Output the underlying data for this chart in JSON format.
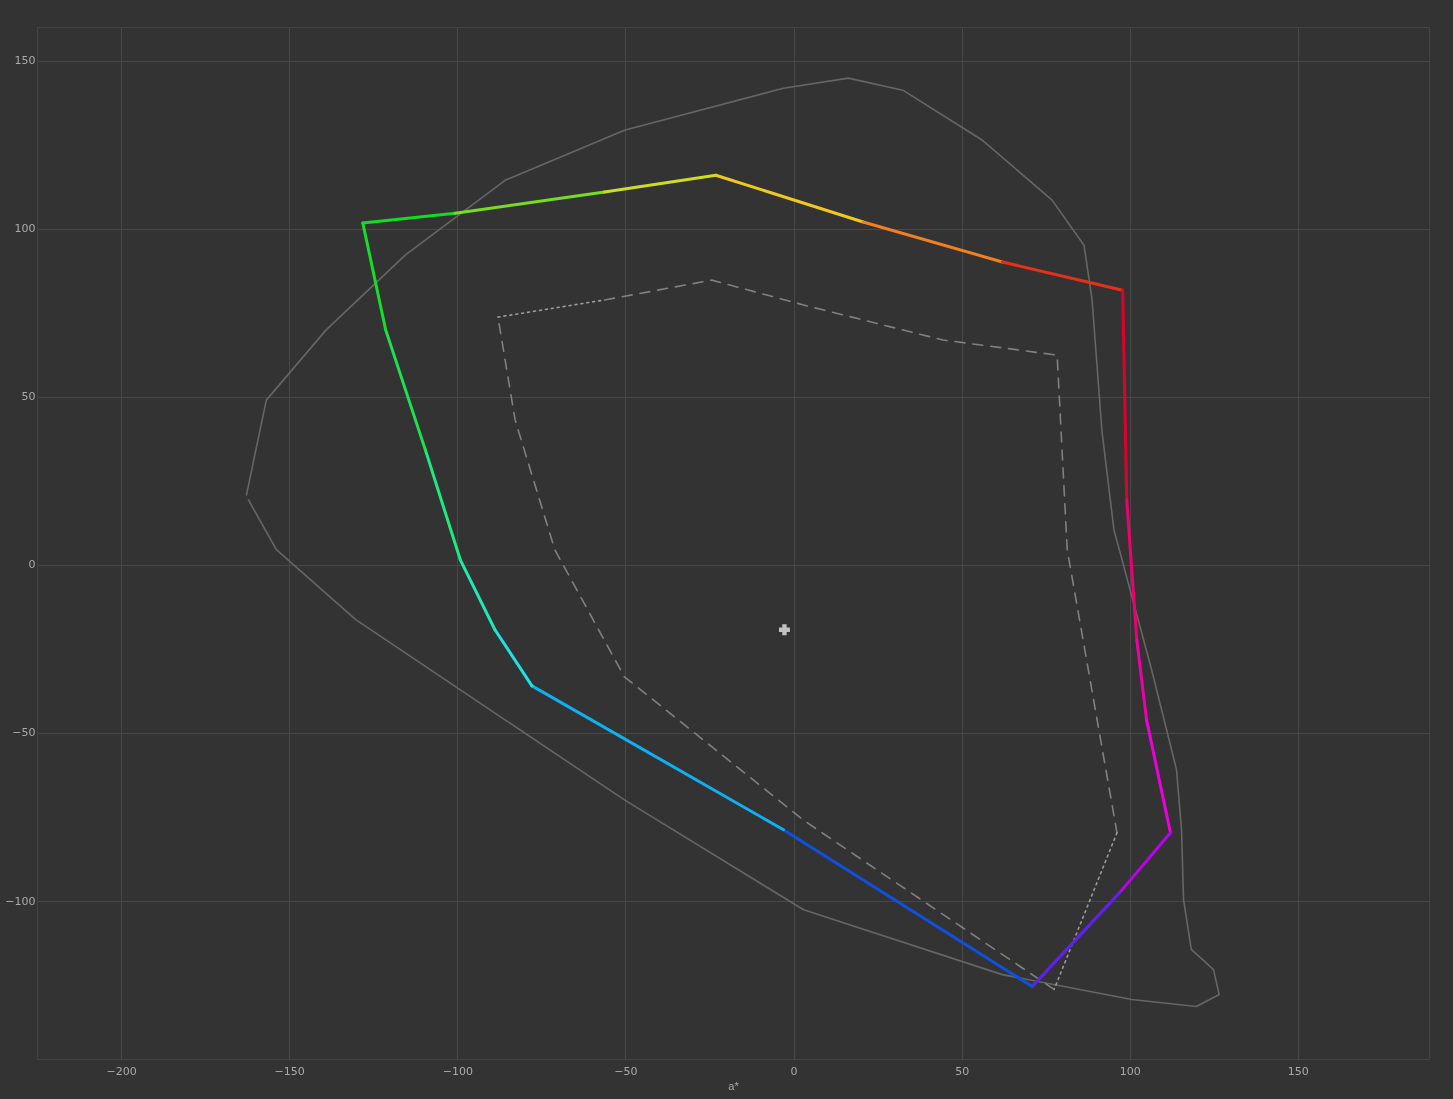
{
  "chart_data": {
    "type": "line",
    "xlabel": "a*",
    "xlim": [
      -225,
      189
    ],
    "ylim": [
      -147,
      160
    ],
    "xticks": [
      -200,
      -150,
      -100,
      -50,
      0,
      50,
      100,
      150
    ],
    "yticks": [
      -100,
      -50,
      0,
      50,
      100,
      150
    ],
    "grid": true,
    "series": [
      {
        "color": "#666666",
        "line_style": "solid",
        "x": [
          -162.7,
          -156.8,
          -139,
          -115.4,
          -85.8,
          -50.3,
          -3,
          16.3,
          32.5,
          56.2,
          76.9,
          86.4,
          88.8,
          91.7,
          95.3,
          106.5,
          113.9,
          115.4,
          116,
          118.3,
          124.9,
          126.6,
          119.8,
          100.6,
          62.1,
          3,
          -50.3,
          -85.8,
          -130.2,
          -153.8,
          -162.1
        ],
        "values": [
          20.8,
          49,
          69.9,
          92.2,
          114.4,
          129.3,
          141.8,
          144.8,
          141.2,
          126.3,
          108.5,
          95.1,
          78.8,
          40.1,
          10.4,
          -31.2,
          -60.9,
          -78.8,
          -99.6,
          -114.4,
          -120.4,
          -127.8,
          -131.4,
          -129.3,
          -121.9,
          -102.6,
          -69.9,
          -46.1,
          -16.3,
          4.5,
          19.3
        ]
      },
      {
        "color": "#9a9a9a",
        "line_style": "dotted",
        "x": [
          -87.9,
          -56.2
        ],
        "values": [
          73.7,
          78.8
        ]
      },
      {
        "color": "#808080",
        "line_style": "dashed",
        "x": [
          -56.2,
          -24.3,
          3,
          44.4,
          78.4,
          81.4,
          96.2
        ],
        "values": [
          78.8,
          84.7,
          77.3,
          66.9,
          62.4,
          4.5,
          -79.7
        ]
      },
      {
        "color": "#9a9a9a",
        "line_style": "dotted",
        "x": [
          96.2,
          77.5
        ],
        "values": [
          -79.7,
          -126.3
        ]
      },
      {
        "color": "#808080",
        "line_style": "dashed",
        "x": [
          77.5,
          3,
          -50.3,
          -71,
          -82.8,
          -87.9
        ],
        "values": [
          -126.3,
          -76,
          -33.3,
          4.5,
          43.1,
          73.7
        ]
      },
      {
        "color": "#11dd22",
        "x": [
          -128.1,
          -100.6
        ],
        "values": [
          101.7,
          104.6
        ]
      },
      {
        "color": "#77dd22",
        "x": [
          -100.6,
          -56.2
        ],
        "values": [
          104.6,
          110.9
        ]
      },
      {
        "color": "#ccdd22",
        "x": [
          -56.2,
          -23.1
        ],
        "values": [
          110.9,
          115.9
        ]
      },
      {
        "color": "#f0c820",
        "x": [
          -23.1,
          20.7
        ],
        "values": [
          115.9,
          102
        ]
      },
      {
        "color": "#f08020",
        "x": [
          20.7,
          62.1
        ],
        "values": [
          102,
          90.1
        ]
      },
      {
        "color": "#e83018",
        "x": [
          62.1,
          97.9
        ],
        "values": [
          90.1,
          81.7
        ]
      },
      {
        "color": "#e00030",
        "x": [
          97.9,
          99.1
        ],
        "values": [
          81.7,
          19.3
        ]
      },
      {
        "color": "#ee0070",
        "x": [
          99.1,
          102.1
        ],
        "values": [
          19.3,
          -22.3
        ]
      },
      {
        "color": "#f000a8",
        "x": [
          102.1,
          105
        ],
        "values": [
          -22.3,
          -46.1
        ]
      },
      {
        "color": "#ee00dd",
        "x": [
          105,
          112.1
        ],
        "values": [
          -46.1,
          -79.7
        ]
      },
      {
        "color": "#bb00ee",
        "x": [
          112.1,
          97.0
        ],
        "values": [
          -79.7,
          -97.5
        ]
      },
      {
        "color": "#6020ee",
        "x": [
          97.0,
          71.0
        ],
        "values": [
          -97.5,
          -125.4
        ]
      },
      {
        "color": "#1050e0",
        "x": [
          71.0,
          -3
        ],
        "values": [
          -125.4,
          -78.8
        ]
      },
      {
        "color": "#10b0f0",
        "x": [
          -3,
          -77.8
        ],
        "values": [
          -78.8,
          -36.0
        ]
      },
      {
        "color": "#20e0e0",
        "x": [
          -77.8,
          -88.8
        ],
        "values": [
          -36.0,
          -19.3
        ]
      },
      {
        "color": "#20e8b0",
        "x": [
          -88.8,
          -99.1
        ],
        "values": [
          -19.3,
          1.5
        ]
      },
      {
        "color": "#20e880",
        "x": [
          -99.1,
          -109.5
        ],
        "values": [
          1.5,
          34.2
        ]
      },
      {
        "color": "#20e050",
        "x": [
          -109.5,
          -121.3
        ],
        "values": [
          34.2,
          69.9
        ]
      },
      {
        "color": "#18dd28",
        "x": [
          -121.3,
          -128.1
        ],
        "values": [
          69.9,
          101.7
        ]
      },
      {
        "type": "scatter",
        "marker": "cross",
        "color": "#ffffff",
        "x": [
          -2.7
        ],
        "values": [
          -19.3
        ]
      }
    ]
  }
}
